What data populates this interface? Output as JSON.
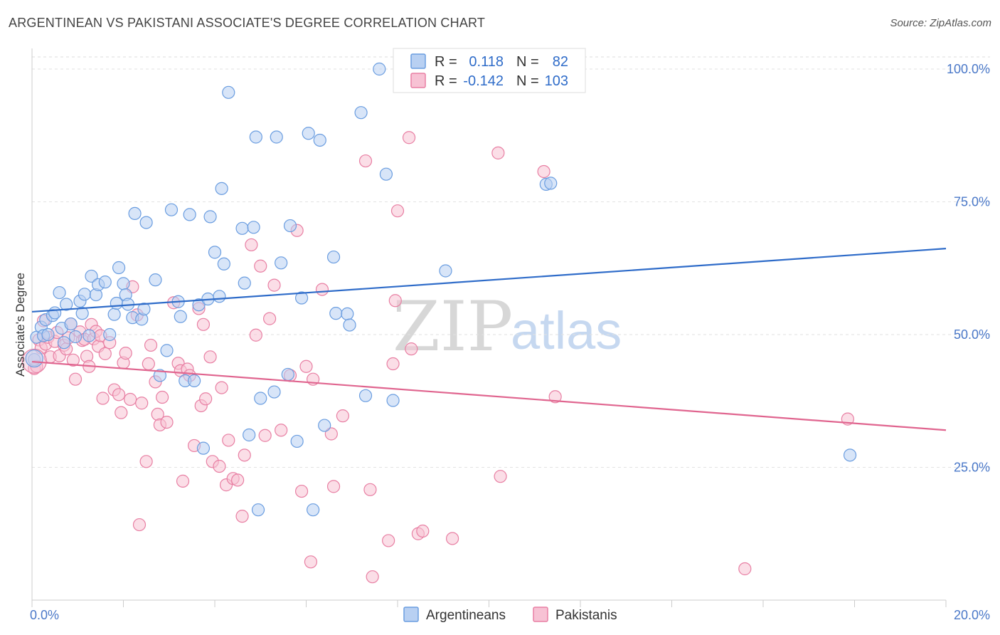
{
  "title": "ARGENTINEAN VS PAKISTANI ASSOCIATE'S DEGREE CORRELATION CHART",
  "source": "Source: ZipAtlas.com",
  "watermark": {
    "zip": "ZIP",
    "atlas": "atlas"
  },
  "colors": {
    "argentineans": "#6a9de0",
    "argentineans_fill": "#b8d0f2",
    "argentineans_line": "#2f6cc9",
    "pakistanis": "#e87fa3",
    "pakistanis_fill": "#f7c2d4",
    "pakistanis_line": "#e0658f",
    "axis_text": "#4a78c8"
  },
  "legend": {
    "rows": [
      {
        "r_label": "R =",
        "r_value": "0.118",
        "n_label": "N =",
        "n_value": "82"
      },
      {
        "r_label": "R =",
        "r_value": "-0.142",
        "n_label": "N =",
        "n_value": "103"
      }
    ]
  },
  "chart_data": {
    "type": "scatter",
    "title": "ARGENTINEAN VS PAKISTANI ASSOCIATE'S DEGREE CORRELATION CHART",
    "xlabel": "",
    "ylabel": "Associate's Degree",
    "xlim": [
      0,
      20
    ],
    "ylim": [
      0,
      102
    ],
    "x_tick_labels": [
      "0.0%",
      "20.0%"
    ],
    "y_ticks": [
      25,
      50,
      75,
      100
    ],
    "y_tick_labels": [
      "25.0%",
      "50.0%",
      "75.0%",
      "100.0%"
    ],
    "grid": true,
    "series": [
      {
        "name": "Argentineans",
        "r": 0.118,
        "n": 82,
        "trend": {
          "x": [
            0,
            20
          ],
          "y": [
            54.3,
            66.2
          ]
        },
        "points": [
          [
            0.05,
            45.3
          ],
          [
            0.1,
            49.5
          ],
          [
            0.2,
            51.4
          ],
          [
            0.25,
            49.8
          ],
          [
            0.3,
            52.8
          ],
          [
            0.35,
            50.0
          ],
          [
            0.45,
            53.6
          ],
          [
            0.5,
            54.1
          ],
          [
            0.6,
            57.9
          ],
          [
            0.65,
            51.2
          ],
          [
            0.7,
            48.5
          ],
          [
            0.75,
            55.7
          ],
          [
            0.85,
            52.0
          ],
          [
            0.95,
            49.6
          ],
          [
            1.05,
            56.3
          ],
          [
            1.1,
            54.0
          ],
          [
            1.15,
            57.6
          ],
          [
            1.25,
            49.8
          ],
          [
            1.3,
            61.0
          ],
          [
            1.4,
            57.5
          ],
          [
            1.45,
            59.4
          ],
          [
            1.6,
            59.9
          ],
          [
            1.7,
            50.0
          ],
          [
            1.8,
            53.8
          ],
          [
            1.85,
            55.9
          ],
          [
            1.9,
            62.6
          ],
          [
            2.0,
            59.6
          ],
          [
            2.05,
            57.5
          ],
          [
            2.1,
            55.7
          ],
          [
            2.2,
            53.2
          ],
          [
            2.25,
            72.8
          ],
          [
            2.4,
            52.9
          ],
          [
            2.45,
            54.8
          ],
          [
            2.5,
            71.1
          ],
          [
            2.7,
            60.3
          ],
          [
            2.8,
            42.3
          ],
          [
            2.95,
            47.0
          ],
          [
            3.05,
            73.5
          ],
          [
            3.2,
            56.2
          ],
          [
            3.25,
            53.4
          ],
          [
            3.35,
            41.3
          ],
          [
            3.45,
            72.6
          ],
          [
            3.55,
            41.3
          ],
          [
            3.65,
            55.6
          ],
          [
            3.75,
            28.6
          ],
          [
            3.85,
            56.7
          ],
          [
            3.9,
            72.2
          ],
          [
            4.0,
            65.5
          ],
          [
            4.1,
            57.2
          ],
          [
            4.15,
            77.5
          ],
          [
            4.2,
            63.3
          ],
          [
            4.3,
            95.6
          ],
          [
            4.6,
            70.0
          ],
          [
            4.65,
            59.7
          ],
          [
            4.75,
            31.1
          ],
          [
            4.85,
            70.2
          ],
          [
            4.9,
            87.2
          ],
          [
            4.95,
            17.0
          ],
          [
            5.0,
            38.0
          ],
          [
            5.3,
            39.2
          ],
          [
            5.35,
            87.2
          ],
          [
            5.45,
            63.5
          ],
          [
            5.6,
            42.5
          ],
          [
            5.65,
            70.5
          ],
          [
            5.8,
            29.9
          ],
          [
            5.9,
            56.9
          ],
          [
            6.05,
            87.9
          ],
          [
            6.15,
            17.0
          ],
          [
            6.3,
            86.6
          ],
          [
            6.4,
            32.9
          ],
          [
            6.6,
            64.6
          ],
          [
            6.65,
            54.0
          ],
          [
            6.9,
            53.9
          ],
          [
            6.95,
            51.8
          ],
          [
            7.2,
            91.8
          ],
          [
            7.3,
            38.5
          ],
          [
            7.6,
            100.0
          ],
          [
            7.75,
            80.2
          ],
          [
            7.9,
            37.6
          ],
          [
            9.05,
            62.0
          ],
          [
            11.25,
            78.3
          ],
          [
            11.35,
            78.5
          ],
          [
            17.9,
            27.3
          ]
        ]
      },
      {
        "name": "Pakistanis",
        "r": -0.142,
        "n": 103,
        "trend": {
          "x": [
            0,
            20
          ],
          "y": [
            44.9,
            32.0
          ]
        },
        "points": [
          [
            0.05,
            43.6
          ],
          [
            0.15,
            49.0
          ],
          [
            0.2,
            47.5
          ],
          [
            0.25,
            52.6
          ],
          [
            0.3,
            48.2
          ],
          [
            0.35,
            49.5
          ],
          [
            0.4,
            45.8
          ],
          [
            0.5,
            48.7
          ],
          [
            0.55,
            50.4
          ],
          [
            0.6,
            46.0
          ],
          [
            0.7,
            48.0
          ],
          [
            0.75,
            47.3
          ],
          [
            0.8,
            49.4
          ],
          [
            0.85,
            52.0
          ],
          [
            0.9,
            45.2
          ],
          [
            0.95,
            41.6
          ],
          [
            1.05,
            50.5
          ],
          [
            1.1,
            48.9
          ],
          [
            1.15,
            49.1
          ],
          [
            1.2,
            45.9
          ],
          [
            1.25,
            44.0
          ],
          [
            1.3,
            51.9
          ],
          [
            1.35,
            49.2
          ],
          [
            1.4,
            50.6
          ],
          [
            1.45,
            47.8
          ],
          [
            1.5,
            49.8
          ],
          [
            1.55,
            38.0
          ],
          [
            1.6,
            46.4
          ],
          [
            1.7,
            48.5
          ],
          [
            1.8,
            39.6
          ],
          [
            1.9,
            38.7
          ],
          [
            1.95,
            35.3
          ],
          [
            2.0,
            44.7
          ],
          [
            2.05,
            46.5
          ],
          [
            2.15,
            37.8
          ],
          [
            2.2,
            59.0
          ],
          [
            2.3,
            53.7
          ],
          [
            2.35,
            14.2
          ],
          [
            2.4,
            37.1
          ],
          [
            2.5,
            26.1
          ],
          [
            2.55,
            44.5
          ],
          [
            2.6,
            48.0
          ],
          [
            2.7,
            41.1
          ],
          [
            2.75,
            35.0
          ],
          [
            2.8,
            33.0
          ],
          [
            2.85,
            38.2
          ],
          [
            2.95,
            33.5
          ],
          [
            3.1,
            56.0
          ],
          [
            3.2,
            44.6
          ],
          [
            3.25,
            43.2
          ],
          [
            3.3,
            22.4
          ],
          [
            3.4,
            43.5
          ],
          [
            3.45,
            42.3
          ],
          [
            3.55,
            29.1
          ],
          [
            3.65,
            54.9
          ],
          [
            3.7,
            36.6
          ],
          [
            3.75,
            51.9
          ],
          [
            3.8,
            37.9
          ],
          [
            3.9,
            45.8
          ],
          [
            3.95,
            26.1
          ],
          [
            4.1,
            25.2
          ],
          [
            4.15,
            40.0
          ],
          [
            4.25,
            21.7
          ],
          [
            4.3,
            30.1
          ],
          [
            4.4,
            22.9
          ],
          [
            4.5,
            22.6
          ],
          [
            4.6,
            15.8
          ],
          [
            4.65,
            27.3
          ],
          [
            4.8,
            66.9
          ],
          [
            4.9,
            49.9
          ],
          [
            5.0,
            62.9
          ],
          [
            5.1,
            31.0
          ],
          [
            5.2,
            53.0
          ],
          [
            5.3,
            59.3
          ],
          [
            5.45,
            32.0
          ],
          [
            5.65,
            42.3
          ],
          [
            5.8,
            69.6
          ],
          [
            5.9,
            20.5
          ],
          [
            6.0,
            44.0
          ],
          [
            6.1,
            7.2
          ],
          [
            6.15,
            41.6
          ],
          [
            6.35,
            58.5
          ],
          [
            6.55,
            31.3
          ],
          [
            6.6,
            21.4
          ],
          [
            6.8,
            34.7
          ],
          [
            7.3,
            82.7
          ],
          [
            7.4,
            20.8
          ],
          [
            7.45,
            4.4
          ],
          [
            7.8,
            11.2
          ],
          [
            7.9,
            44.5
          ],
          [
            7.95,
            56.4
          ],
          [
            8.0,
            73.3
          ],
          [
            8.25,
            87.1
          ],
          [
            8.3,
            47.3
          ],
          [
            8.45,
            12.5
          ],
          [
            8.55,
            13.0
          ],
          [
            9.2,
            11.6
          ],
          [
            10.2,
            84.2
          ],
          [
            10.25,
            23.3
          ],
          [
            11.2,
            80.7
          ],
          [
            11.45,
            38.3
          ],
          [
            15.6,
            5.9
          ],
          [
            17.85,
            34.1
          ],
          [
            0.1,
            44.0
          ]
        ]
      }
    ]
  },
  "bottom_legend": {
    "argentineans": "Argentineans",
    "pakistanis": "Pakistanis"
  }
}
